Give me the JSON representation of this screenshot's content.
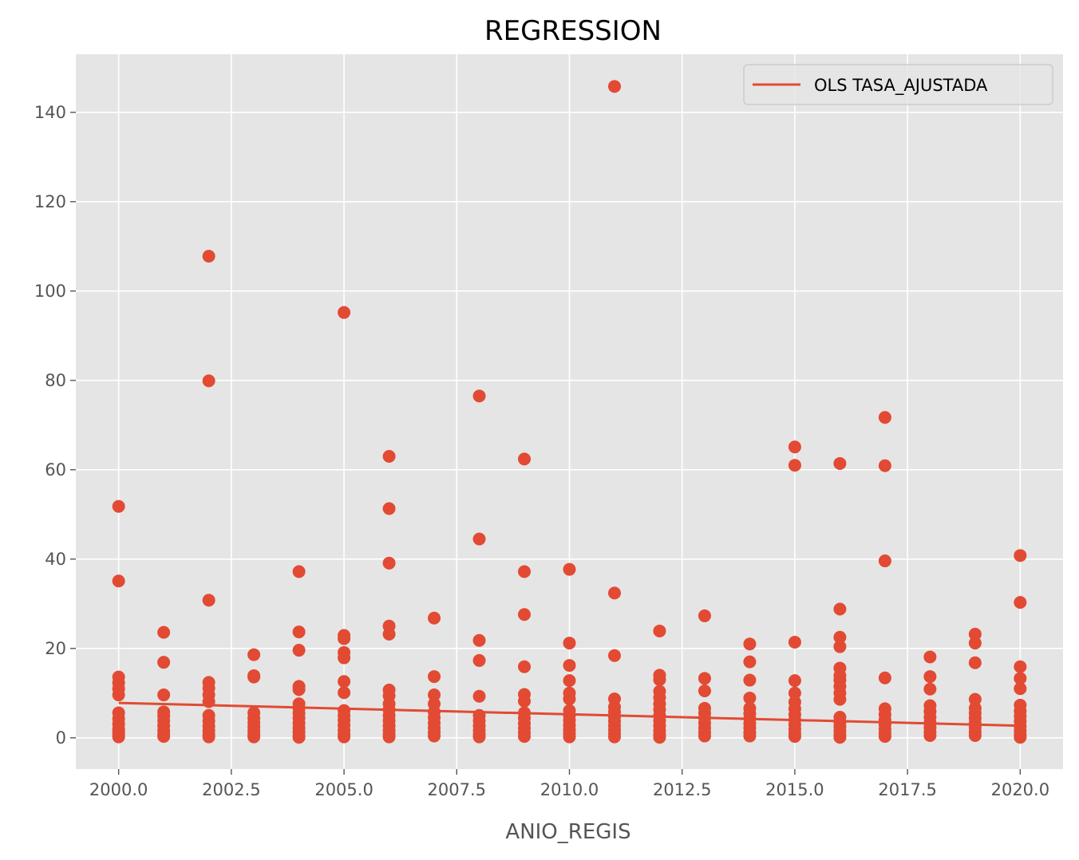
{
  "colors": {
    "points": "#E24A33",
    "line": "#E24A33",
    "plot_background": "#E5E5E5",
    "grid": "#FFFFFF",
    "tick_text": "#555555"
  },
  "chart_data": {
    "type": "scatter",
    "title": "REGRESSION",
    "xlabel": "ANIO_REGIS",
    "ylabel": "",
    "xlim": [
      1999.05,
      2020.95
    ],
    "ylim": [
      -7.0,
      153.0
    ],
    "xticks": [
      2000.0,
      2002.5,
      2005.0,
      2007.5,
      2010.0,
      2012.5,
      2015.0,
      2017.5,
      2020.0
    ],
    "xtick_labels": [
      "2000.0",
      "2002.5",
      "2005.0",
      "2007.5",
      "2010.0",
      "2012.5",
      "2015.0",
      "2017.5",
      "2020.0"
    ],
    "yticks": [
      0,
      20,
      40,
      60,
      80,
      100,
      120,
      140
    ],
    "ytick_labels": [
      "0",
      "20",
      "40",
      "60",
      "80",
      "100",
      "120",
      "140"
    ],
    "grid": true,
    "legend": {
      "position": "top-right",
      "entries": [
        "OLS TASA_AJUSTADA"
      ]
    },
    "series": [
      {
        "kind": "scatter",
        "points": [
          [
            2000,
            51.8
          ],
          [
            2000,
            35.1
          ],
          [
            2000,
            13.6
          ],
          [
            2000,
            12.3
          ],
          [
            2000,
            11.0
          ],
          [
            2000,
            9.6
          ],
          [
            2000,
            5.6
          ],
          [
            2000,
            4.3
          ],
          [
            2000,
            3.1
          ],
          [
            2000,
            2.0
          ],
          [
            2000,
            1.2
          ],
          [
            2000,
            0.6
          ],
          [
            2000,
            0.2
          ],
          [
            2001,
            23.6
          ],
          [
            2001,
            16.9
          ],
          [
            2001,
            9.6
          ],
          [
            2001,
            5.8
          ],
          [
            2001,
            4.9
          ],
          [
            2001,
            3.8
          ],
          [
            2001,
            2.7
          ],
          [
            2001,
            1.6
          ],
          [
            2001,
            0.8
          ],
          [
            2001,
            0.3
          ],
          [
            2002,
            107.8
          ],
          [
            2002,
            79.9
          ],
          [
            2002,
            30.8
          ],
          [
            2002,
            12.4
          ],
          [
            2002,
            11.1
          ],
          [
            2002,
            9.6
          ],
          [
            2002,
            8.1
          ],
          [
            2002,
            5.0
          ],
          [
            2002,
            3.8
          ],
          [
            2002,
            2.6
          ],
          [
            2002,
            1.6
          ],
          [
            2002,
            0.7
          ],
          [
            2002,
            0.2
          ],
          [
            2003,
            18.6
          ],
          [
            2003,
            13.9
          ],
          [
            2003,
            13.6
          ],
          [
            2003,
            5.6
          ],
          [
            2003,
            4.4
          ],
          [
            2003,
            3.4
          ],
          [
            2003,
            2.5
          ],
          [
            2003,
            1.6
          ],
          [
            2003,
            0.8
          ],
          [
            2003,
            0.2
          ],
          [
            2004,
            37.2
          ],
          [
            2004,
            23.7
          ],
          [
            2004,
            19.6
          ],
          [
            2004,
            11.5
          ],
          [
            2004,
            10.8
          ],
          [
            2004,
            7.6
          ],
          [
            2004,
            6.6
          ],
          [
            2004,
            5.5
          ],
          [
            2004,
            4.4
          ],
          [
            2004,
            3.3
          ],
          [
            2004,
            2.2
          ],
          [
            2004,
            1.3
          ],
          [
            2004,
            0.5
          ],
          [
            2004,
            0.1
          ],
          [
            2005,
            95.2
          ],
          [
            2005,
            22.9
          ],
          [
            2005,
            22.2
          ],
          [
            2005,
            19.1
          ],
          [
            2005,
            17.9
          ],
          [
            2005,
            12.6
          ],
          [
            2005,
            10.1
          ],
          [
            2005,
            6.1
          ],
          [
            2005,
            5.0
          ],
          [
            2005,
            3.9
          ],
          [
            2005,
            2.8
          ],
          [
            2005,
            1.7
          ],
          [
            2005,
            0.8
          ],
          [
            2005,
            0.2
          ],
          [
            2006,
            63.0
          ],
          [
            2006,
            51.3
          ],
          [
            2006,
            39.1
          ],
          [
            2006,
            25.0
          ],
          [
            2006,
            23.2
          ],
          [
            2006,
            10.7
          ],
          [
            2006,
            9.4
          ],
          [
            2006,
            7.6
          ],
          [
            2006,
            6.3
          ],
          [
            2006,
            5.0
          ],
          [
            2006,
            3.8
          ],
          [
            2006,
            2.7
          ],
          [
            2006,
            1.7
          ],
          [
            2006,
            0.8
          ],
          [
            2006,
            0.2
          ],
          [
            2007,
            26.8
          ],
          [
            2007,
            13.7
          ],
          [
            2007,
            9.6
          ],
          [
            2007,
            7.6
          ],
          [
            2007,
            5.8
          ],
          [
            2007,
            4.5
          ],
          [
            2007,
            3.3
          ],
          [
            2007,
            2.2
          ],
          [
            2007,
            1.2
          ],
          [
            2007,
            0.4
          ],
          [
            2008,
            76.5
          ],
          [
            2008,
            44.5
          ],
          [
            2008,
            21.8
          ],
          [
            2008,
            17.3
          ],
          [
            2008,
            9.3
          ],
          [
            2008,
            5.0
          ],
          [
            2008,
            3.8
          ],
          [
            2008,
            2.7
          ],
          [
            2008,
            1.7
          ],
          [
            2008,
            0.8
          ],
          [
            2008,
            0.2
          ],
          [
            2009,
            62.4
          ],
          [
            2009,
            37.2
          ],
          [
            2009,
            27.6
          ],
          [
            2009,
            15.9
          ],
          [
            2009,
            9.7
          ],
          [
            2009,
            8.2
          ],
          [
            2009,
            5.6
          ],
          [
            2009,
            4.4
          ],
          [
            2009,
            3.2
          ],
          [
            2009,
            2.1
          ],
          [
            2009,
            1.1
          ],
          [
            2009,
            0.3
          ],
          [
            2010,
            37.7
          ],
          [
            2010,
            21.2
          ],
          [
            2010,
            16.2
          ],
          [
            2010,
            12.8
          ],
          [
            2010,
            10.0
          ],
          [
            2010,
            8.7
          ],
          [
            2010,
            6.1
          ],
          [
            2010,
            5.0
          ],
          [
            2010,
            3.9
          ],
          [
            2010,
            2.8
          ],
          [
            2010,
            1.8
          ],
          [
            2010,
            0.9
          ],
          [
            2010,
            0.2
          ],
          [
            2011,
            145.8
          ],
          [
            2011,
            32.4
          ],
          [
            2011,
            18.4
          ],
          [
            2011,
            8.7
          ],
          [
            2011,
            6.9
          ],
          [
            2011,
            5.8
          ],
          [
            2011,
            4.7
          ],
          [
            2011,
            3.7
          ],
          [
            2011,
            2.7
          ],
          [
            2011,
            1.8
          ],
          [
            2011,
            0.9
          ],
          [
            2011,
            0.2
          ],
          [
            2012,
            23.9
          ],
          [
            2012,
            14.0
          ],
          [
            2012,
            13.0
          ],
          [
            2012,
            10.4
          ],
          [
            2012,
            9.0
          ],
          [
            2012,
            7.6
          ],
          [
            2012,
            6.3
          ],
          [
            2012,
            5.0
          ],
          [
            2012,
            3.8
          ],
          [
            2012,
            2.7
          ],
          [
            2012,
            1.6
          ],
          [
            2012,
            0.7
          ],
          [
            2012,
            0.1
          ],
          [
            2013,
            27.3
          ],
          [
            2013,
            13.3
          ],
          [
            2013,
            10.5
          ],
          [
            2013,
            6.6
          ],
          [
            2013,
            5.5
          ],
          [
            2013,
            4.4
          ],
          [
            2013,
            3.3
          ],
          [
            2013,
            2.2
          ],
          [
            2013,
            1.2
          ],
          [
            2013,
            0.4
          ],
          [
            2014,
            21.0
          ],
          [
            2014,
            17.0
          ],
          [
            2014,
            12.9
          ],
          [
            2014,
            8.9
          ],
          [
            2014,
            6.6
          ],
          [
            2014,
            5.4
          ],
          [
            2014,
            4.3
          ],
          [
            2014,
            3.2
          ],
          [
            2014,
            2.2
          ],
          [
            2014,
            1.2
          ],
          [
            2014,
            0.4
          ],
          [
            2015,
            65.1
          ],
          [
            2015,
            61.0
          ],
          [
            2015,
            21.4
          ],
          [
            2015,
            12.8
          ],
          [
            2015,
            10.0
          ],
          [
            2015,
            8.0
          ],
          [
            2015,
            6.5
          ],
          [
            2015,
            5.2
          ],
          [
            2015,
            4.0
          ],
          [
            2015,
            2.9
          ],
          [
            2015,
            1.9
          ],
          [
            2015,
            1.0
          ],
          [
            2015,
            0.3
          ],
          [
            2016,
            61.4
          ],
          [
            2016,
            28.8
          ],
          [
            2016,
            22.5
          ],
          [
            2016,
            20.4
          ],
          [
            2016,
            15.6
          ],
          [
            2016,
            13.9
          ],
          [
            2016,
            12.9
          ],
          [
            2016,
            11.5
          ],
          [
            2016,
            10.0
          ],
          [
            2016,
            8.6
          ],
          [
            2016,
            4.6
          ],
          [
            2016,
            3.5
          ],
          [
            2016,
            2.5
          ],
          [
            2016,
            1.5
          ],
          [
            2016,
            0.6
          ],
          [
            2016,
            0.1
          ],
          [
            2017,
            71.7
          ],
          [
            2017,
            60.9
          ],
          [
            2017,
            39.6
          ],
          [
            2017,
            13.4
          ],
          [
            2017,
            6.5
          ],
          [
            2017,
            5.2
          ],
          [
            2017,
            4.0
          ],
          [
            2017,
            2.9
          ],
          [
            2017,
            1.9
          ],
          [
            2017,
            1.0
          ],
          [
            2017,
            0.3
          ],
          [
            2018,
            18.1
          ],
          [
            2018,
            13.7
          ],
          [
            2018,
            10.9
          ],
          [
            2018,
            7.2
          ],
          [
            2018,
            5.9
          ],
          [
            2018,
            4.6
          ],
          [
            2018,
            3.4
          ],
          [
            2018,
            2.3
          ],
          [
            2018,
            1.3
          ],
          [
            2018,
            0.5
          ],
          [
            2019,
            23.2
          ],
          [
            2019,
            21.2
          ],
          [
            2019,
            16.8
          ],
          [
            2019,
            8.6
          ],
          [
            2019,
            6.6
          ],
          [
            2019,
            5.5
          ],
          [
            2019,
            4.4
          ],
          [
            2019,
            3.3
          ],
          [
            2019,
            2.3
          ],
          [
            2019,
            1.3
          ],
          [
            2019,
            0.5
          ],
          [
            2020,
            40.8
          ],
          [
            2020,
            30.3
          ],
          [
            2020,
            15.9
          ],
          [
            2020,
            13.3
          ],
          [
            2020,
            11.0
          ],
          [
            2020,
            7.3
          ],
          [
            2020,
            6.0
          ],
          [
            2020,
            4.8
          ],
          [
            2020,
            3.7
          ],
          [
            2020,
            2.6
          ],
          [
            2020,
            1.6
          ],
          [
            2020,
            0.7
          ],
          [
            2020,
            0.1
          ]
        ]
      },
      {
        "kind": "line",
        "name": "OLS TASA_AJUSTADA",
        "x": [
          2000,
          2020
        ],
        "y": [
          7.8,
          2.7
        ]
      }
    ]
  }
}
